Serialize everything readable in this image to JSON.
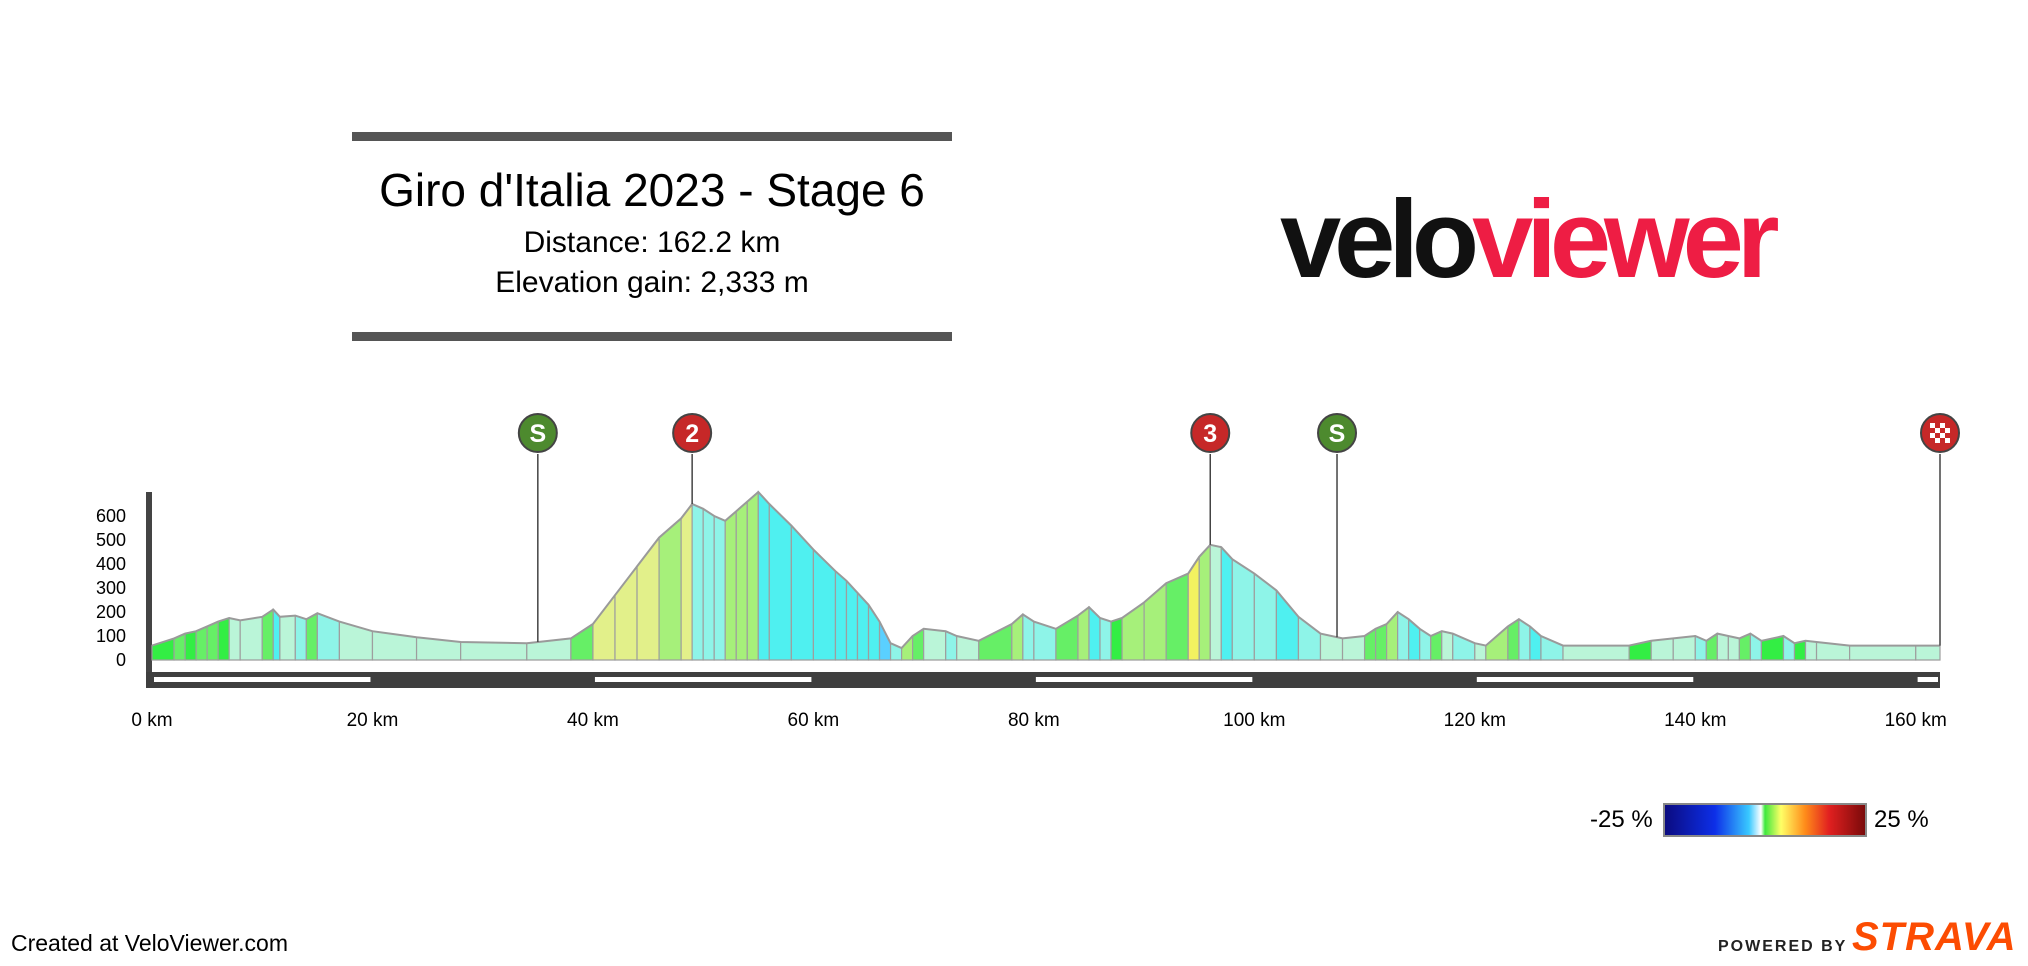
{
  "header": {
    "title": "Giro d'Italia 2023 - Stage 6",
    "distance": "Distance: 162.2 km",
    "elevation_gain": "Elevation gain: 2,333 m"
  },
  "logo": {
    "part1": "velo",
    "part2": "viewer"
  },
  "footer": {
    "created": "Created at VeloViewer.com",
    "powered": "POWERED BY",
    "strava": "STRAVA"
  },
  "legend": {
    "min_label": "-25 %",
    "max_label": "25 %"
  },
  "colors": {
    "accent": "#ee1d44",
    "sprint": "#4d8a2e",
    "climb": "#c62828",
    "finish": "#c62828",
    "strava": "#fc4c02"
  },
  "chart_data": {
    "type": "area",
    "title": "Giro d'Italia 2023 - Stage 6",
    "x_unit": "km",
    "y_unit": "m",
    "xlim": [
      0,
      162.2
    ],
    "ylim": [
      0,
      700
    ],
    "x_ticks": [
      0,
      20,
      40,
      60,
      80,
      100,
      120,
      140,
      160
    ],
    "x_tick_labels": [
      "0 km",
      "20 km",
      "40 km",
      "60 km",
      "80 km",
      "100 km",
      "120 km",
      "140 km",
      "160 km"
    ],
    "y_ticks": [
      0,
      100,
      200,
      300,
      400,
      500,
      600
    ],
    "y_tick_labels": [
      "0",
      "100",
      "200",
      "300",
      "400",
      "500",
      "600"
    ],
    "profile": [
      [
        0,
        60
      ],
      [
        2,
        90
      ],
      [
        3,
        110
      ],
      [
        4,
        120
      ],
      [
        5,
        140
      ],
      [
        6,
        160
      ],
      [
        7,
        175
      ],
      [
        8,
        165
      ],
      [
        10,
        180
      ],
      [
        11,
        210
      ],
      [
        11.6,
        180
      ],
      [
        13,
        185
      ],
      [
        14,
        170
      ],
      [
        15,
        195
      ],
      [
        17,
        160
      ],
      [
        20,
        120
      ],
      [
        24,
        95
      ],
      [
        28,
        75
      ],
      [
        34,
        70
      ],
      [
        38,
        90
      ],
      [
        40,
        150
      ],
      [
        42,
        270
      ],
      [
        44,
        390
      ],
      [
        46,
        510
      ],
      [
        48,
        590
      ],
      [
        49,
        650
      ],
      [
        50,
        630
      ],
      [
        51,
        600
      ],
      [
        52,
        580
      ],
      [
        53,
        620
      ],
      [
        54,
        660
      ],
      [
        55,
        700
      ],
      [
        56,
        650
      ],
      [
        58,
        560
      ],
      [
        60,
        460
      ],
      [
        62,
        370
      ],
      [
        63,
        330
      ],
      [
        64,
        280
      ],
      [
        65,
        230
      ],
      [
        66,
        160
      ],
      [
        67,
        70
      ],
      [
        68,
        50
      ],
      [
        69,
        100
      ],
      [
        70,
        130
      ],
      [
        72,
        120
      ],
      [
        73,
        100
      ],
      [
        75,
        80
      ],
      [
        78,
        150
      ],
      [
        79,
        190
      ],
      [
        80,
        160
      ],
      [
        82,
        130
      ],
      [
        84,
        185
      ],
      [
        85,
        220
      ],
      [
        86,
        175
      ],
      [
        87,
        160
      ],
      [
        88,
        175
      ],
      [
        90,
        240
      ],
      [
        92,
        320
      ],
      [
        94,
        360
      ],
      [
        95,
        430
      ],
      [
        96,
        480
      ],
      [
        97,
        470
      ],
      [
        98,
        420
      ],
      [
        100,
        360
      ],
      [
        102,
        290
      ],
      [
        104,
        180
      ],
      [
        106,
        110
      ],
      [
        108,
        90
      ],
      [
        110,
        100
      ],
      [
        111,
        130
      ],
      [
        112,
        150
      ],
      [
        113,
        200
      ],
      [
        114,
        170
      ],
      [
        115,
        130
      ],
      [
        116,
        100
      ],
      [
        117,
        120
      ],
      [
        118,
        110
      ],
      [
        120,
        70
      ],
      [
        121,
        60
      ],
      [
        123,
        140
      ],
      [
        124,
        170
      ],
      [
        125,
        140
      ],
      [
        126,
        100
      ],
      [
        128,
        60
      ],
      [
        134,
        60
      ],
      [
        136,
        80
      ],
      [
        138,
        90
      ],
      [
        140,
        100
      ],
      [
        141,
        80
      ],
      [
        142,
        110
      ],
      [
        143,
        100
      ],
      [
        144,
        90
      ],
      [
        145,
        110
      ],
      [
        146,
        80
      ],
      [
        148,
        100
      ],
      [
        149,
        70
      ],
      [
        150,
        80
      ],
      [
        151,
        75
      ],
      [
        154,
        60
      ],
      [
        160,
        60
      ],
      [
        162.2,
        60
      ]
    ],
    "markers": [
      {
        "label": "S",
        "type": "sprint",
        "km": 35
      },
      {
        "label": "2",
        "type": "climb",
        "km": 49
      },
      {
        "label": "3",
        "type": "climb",
        "km": 96
      },
      {
        "label": "S",
        "type": "sprint",
        "km": 107.5
      },
      {
        "label": "",
        "type": "finish",
        "km": 162.2
      }
    ],
    "gradient_scale": {
      "min": -25,
      "max": 25,
      "unit": "%"
    }
  }
}
